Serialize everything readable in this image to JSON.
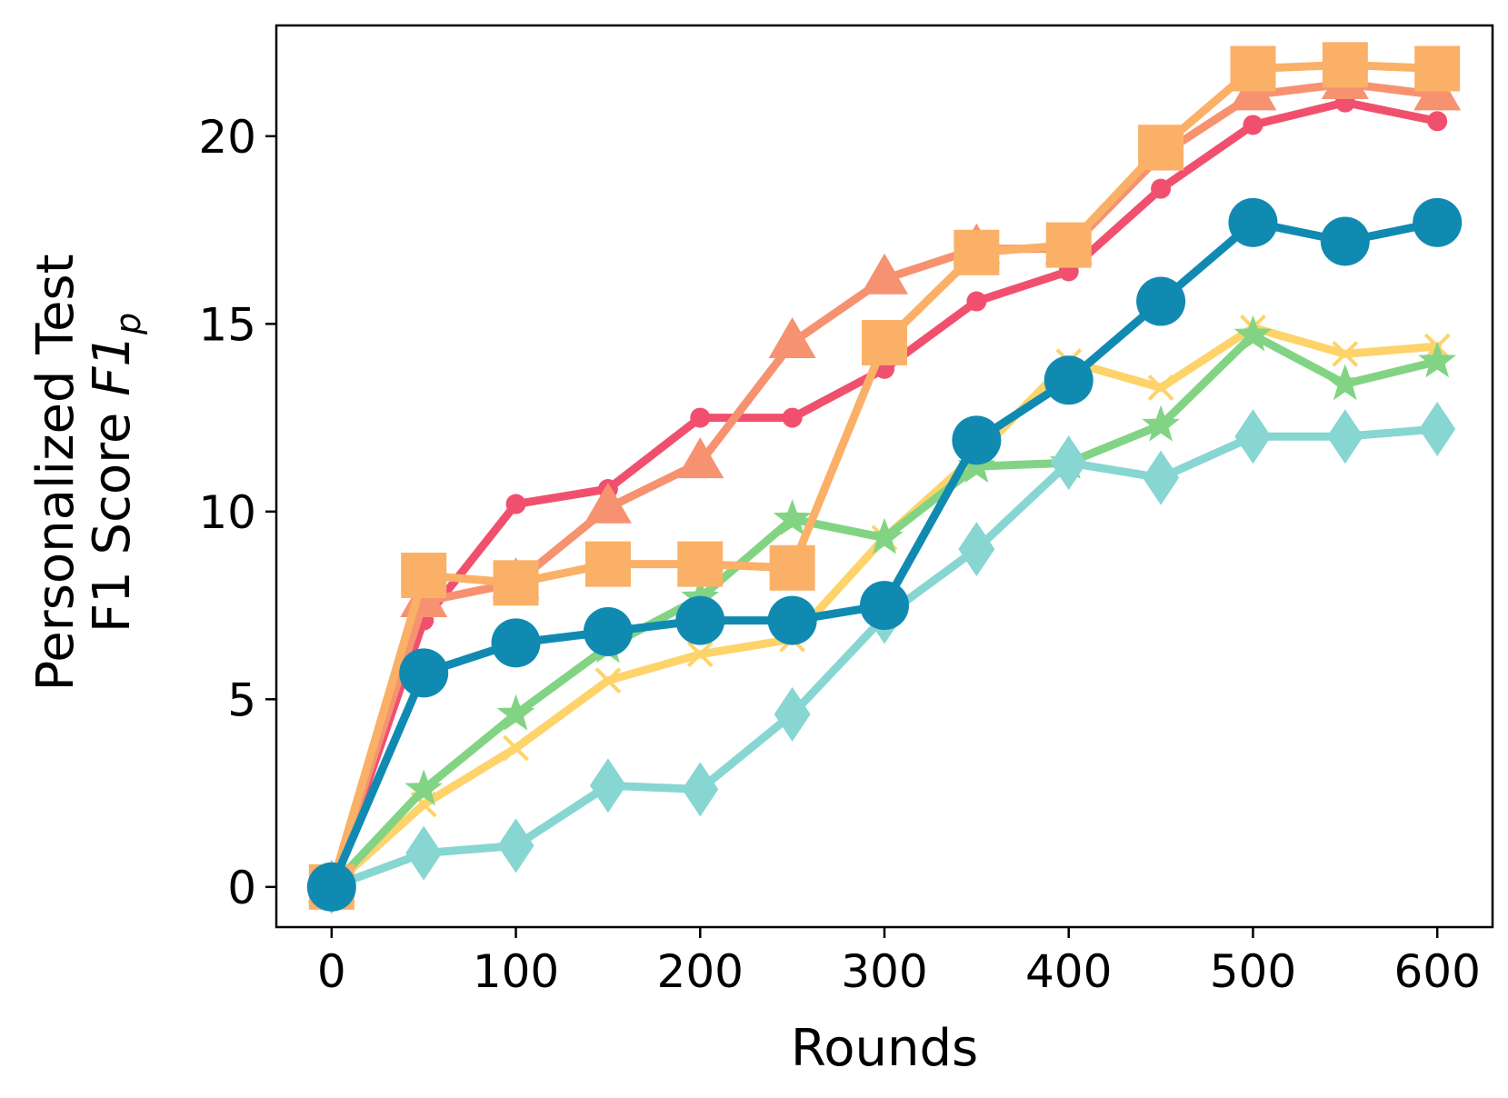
{
  "chart_data": {
    "type": "line",
    "xlabel": "Rounds",
    "ylabel_line1": "Personalized Test",
    "ylabel_line2_prefix": "F1 Score ",
    "ylabel_line2_var": "F1",
    "ylabel_line2_sub": "p",
    "xlim": [
      -30,
      630
    ],
    "ylim": [
      -1.07,
      22.95
    ],
    "xticks": [
      0,
      100,
      200,
      300,
      400,
      500,
      600
    ],
    "yticks": [
      0,
      5,
      10,
      15,
      20
    ],
    "grid": false,
    "x": [
      0,
      50,
      100,
      150,
      200,
      250,
      300,
      350,
      400,
      450,
      500,
      550,
      600
    ],
    "series": [
      {
        "color": "#f0506e",
        "marker": "circle-small",
        "values": [
          0,
          7.1,
          10.2,
          10.6,
          12.5,
          12.5,
          13.8,
          15.6,
          16.4,
          18.6,
          20.3,
          20.9,
          20.4
        ]
      },
      {
        "color": "#f69270",
        "marker": "triangle",
        "values": [
          0,
          7.6,
          8.1,
          10.1,
          11.3,
          14.5,
          16.2,
          17.0,
          17.0,
          19.5,
          21.1,
          21.4,
          21.1
        ]
      },
      {
        "color": "#fdd36a",
        "marker": "x-cross",
        "values": [
          0,
          2.2,
          3.7,
          5.5,
          6.2,
          6.6,
          9.3,
          11.5,
          14.0,
          13.3,
          14.9,
          14.2,
          14.4
        ]
      },
      {
        "color": "#82d484",
        "marker": "star",
        "values": [
          0,
          2.6,
          4.6,
          6.4,
          7.7,
          9.8,
          9.3,
          11.2,
          11.3,
          12.3,
          14.7,
          13.4,
          14.0
        ]
      },
      {
        "color": "#87d6d2",
        "marker": "diamond",
        "values": [
          0,
          0.9,
          1.1,
          2.7,
          2.6,
          4.6,
          7.2,
          9.0,
          11.3,
          10.9,
          12.0,
          12.0,
          12.2
        ]
      },
      {
        "color": "#fbb067",
        "marker": "square",
        "values": [
          0,
          8.3,
          8.1,
          8.6,
          8.6,
          8.5,
          14.5,
          16.9,
          17.1,
          19.7,
          21.8,
          21.9,
          21.8
        ]
      },
      {
        "color": "#118ab2",
        "marker": "circle-large",
        "values": [
          0,
          5.7,
          6.5,
          6.8,
          7.1,
          7.1,
          7.5,
          11.9,
          13.5,
          15.6,
          17.7,
          17.2,
          17.7
        ]
      }
    ]
  }
}
